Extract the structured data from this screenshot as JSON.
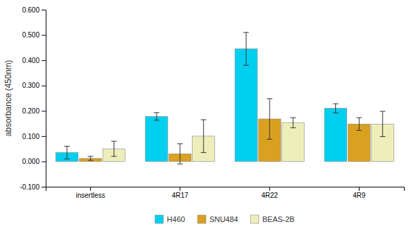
{
  "chart_data": {
    "type": "bar",
    "y_label": "absorbance (450nm)",
    "categories": [
      "insertless",
      "4R17",
      "4R22",
      "4R9"
    ],
    "series": [
      {
        "name": "H460",
        "color": "#00CFEF",
        "values": [
          0.035,
          0.178,
          0.445,
          0.21
        ],
        "errors": [
          0.025,
          0.015,
          0.065,
          0.018
        ]
      },
      {
        "name": "SNU484",
        "color": "#DAA020",
        "values": [
          0.012,
          0.03,
          0.168,
          0.148
        ],
        "errors": [
          0.008,
          0.04,
          0.08,
          0.025
        ]
      },
      {
        "name": "BEAS-2B",
        "color": "#EEEEBB",
        "values": [
          0.05,
          0.1,
          0.153,
          0.148
        ],
        "errors": [
          0.03,
          0.065,
          0.02,
          0.05
        ]
      }
    ],
    "ylim": [
      -0.1,
      0.6
    ],
    "yticks": [
      {
        "value": -0.1,
        "label": "-0.100"
      },
      {
        "value": 0,
        "label": "0.000"
      },
      {
        "value": 0.1,
        "label": "0.100"
      },
      {
        "value": 0.2,
        "label": "0.200"
      },
      {
        "value": 0.3,
        "label": "0.300"
      },
      {
        "value": 0.4,
        "label": "0.400"
      },
      {
        "value": 0.5,
        "label": "0.500"
      },
      {
        "value": 0.6,
        "label": "0.600"
      }
    ],
    "grid": false,
    "legend": "bottom"
  }
}
